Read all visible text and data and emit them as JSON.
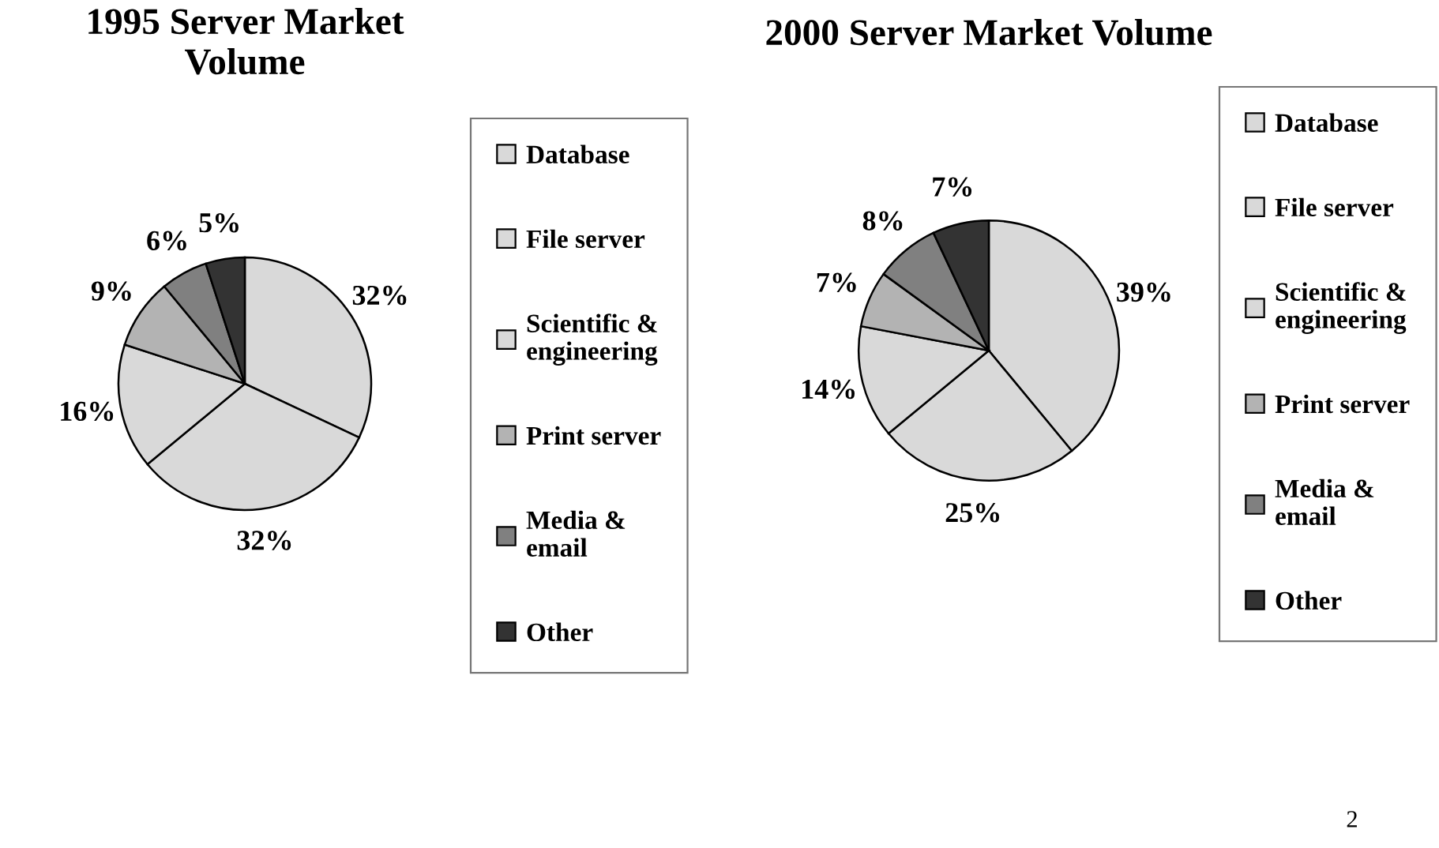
{
  "chart_data": [
    {
      "type": "pie",
      "title": "1995 Server Market\nVolume",
      "categories": [
        "Database",
        "File server",
        "Scientific &\nengineering",
        "Print server",
        "Media &\nemail",
        "Other"
      ],
      "values": [
        32,
        32,
        16,
        9,
        6,
        5
      ],
      "value_labels": [
        "32%",
        "32%",
        "16%",
        "9%",
        "6%",
        "5%"
      ],
      "colors": [
        "#d9d9d9",
        "#d9d9d9",
        "#d9d9d9",
        "#b3b3b3",
        "#808080",
        "#333333"
      ],
      "legend": "right"
    },
    {
      "type": "pie",
      "title": "2000 Server Market Volume",
      "categories": [
        "Database",
        "File server",
        "Scientific &\nengineering",
        "Print server",
        "Media &\nemail",
        "Other"
      ],
      "values": [
        39,
        25,
        14,
        7,
        8,
        7
      ],
      "value_labels": [
        "39%",
        "25%",
        "14%",
        "7%",
        "8%",
        "7%"
      ],
      "colors": [
        "#d9d9d9",
        "#d9d9d9",
        "#d9d9d9",
        "#b3b3b3",
        "#808080",
        "#333333"
      ],
      "legend": "right",
      "annotations": [
        "2"
      ]
    }
  ]
}
